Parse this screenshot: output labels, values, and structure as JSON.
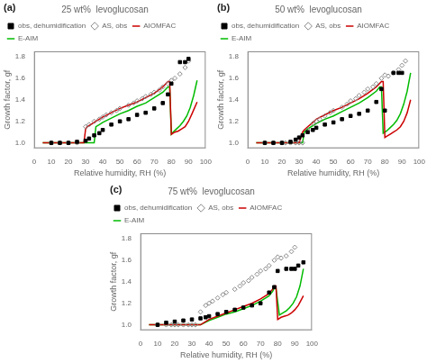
{
  "chart_data": [
    {
      "type": "scatter",
      "title": "25 wt%  levoglucosan",
      "annotations": [
        "(a)"
      ],
      "xlabel": "Relative humidity, RH (%)",
      "ylabel": "Growth factor, gf",
      "xlim": [
        0,
        100
      ],
      "ylim": [
        0.95,
        1.85
      ],
      "xticks": [
        0,
        10,
        20,
        30,
        40,
        50,
        60,
        70,
        80,
        90,
        100
      ],
      "yticks": [
        {
          "value": 1.0,
          "label": "1.0"
        },
        {
          "value": 1.2,
          "label": "1.2"
        },
        {
          "value": 1.4,
          "label": "1.4"
        },
        {
          "value": 1.6,
          "label": "1.6"
        },
        {
          "value": 1.8,
          "label": "1.8"
        }
      ],
      "grid": false,
      "legend": "upper left",
      "series": [
        {
          "name": "obs, dehumidification",
          "type": "scatter",
          "marker": "square",
          "color": "#000000",
          "x": [
            10,
            15,
            20,
            25,
            30,
            32,
            35,
            38,
            40,
            45,
            50,
            55,
            60,
            65,
            70,
            75,
            78,
            80,
            85,
            88,
            90
          ],
          "values": [
            1.0,
            1.0,
            1.0,
            1.01,
            1.02,
            1.04,
            1.07,
            1.09,
            1.12,
            1.17,
            1.2,
            1.22,
            1.26,
            1.28,
            1.32,
            1.37,
            1.45,
            1.55,
            1.75,
            1.75,
            1.78
          ]
        },
        {
          "name": "AS, obs",
          "type": "scatter",
          "marker": "open_diamond",
          "color": "#888888",
          "x": [
            10,
            15,
            20,
            25,
            30,
            32,
            35,
            38,
            40,
            42,
            45,
            48,
            50,
            55,
            58,
            60,
            63,
            65,
            68,
            70,
            73,
            75,
            78,
            80,
            82,
            85,
            88,
            90
          ],
          "values": [
            1.0,
            1.0,
            1.0,
            1.0,
            1.15,
            1.17,
            1.2,
            1.22,
            1.24,
            1.26,
            1.28,
            1.3,
            1.32,
            1.35,
            1.37,
            1.39,
            1.41,
            1.43,
            1.45,
            1.47,
            1.49,
            1.52,
            1.55,
            1.58,
            1.6,
            1.64,
            1.7,
            1.76
          ]
        },
        {
          "name": "AIOMFAC",
          "type": "line",
          "line_style": "solid",
          "color": "#cc0000",
          "x": [
            5,
            10,
            15,
            20,
            25,
            29,
            30,
            31,
            32,
            34,
            36,
            38,
            40,
            45,
            50,
            55,
            60,
            65,
            70,
            75,
            78,
            79,
            80,
            81,
            82,
            84,
            86,
            88,
            90,
            92,
            95
          ],
          "values": [
            1.0,
            1.0,
            1.0,
            1.0,
            1.0,
            1.0,
            1.13,
            1.15,
            1.16,
            1.18,
            1.2,
            1.22,
            1.24,
            1.28,
            1.32,
            1.35,
            1.38,
            1.42,
            1.46,
            1.52,
            1.57,
            1.57,
            1.08,
            1.09,
            1.1,
            1.11,
            1.13,
            1.15,
            1.2,
            1.27,
            1.38
          ]
        },
        {
          "name": "E-AIM",
          "type": "line",
          "line_style": "solid",
          "color": "#00bb00",
          "x": [
            5,
            10,
            15,
            20,
            25,
            30,
            35,
            36,
            38,
            40,
            45,
            50,
            55,
            60,
            65,
            70,
            75,
            78,
            79,
            80,
            81,
            83,
            85,
            87,
            89,
            91,
            93,
            95
          ],
          "values": [
            1.0,
            1.0,
            1.0,
            1.0,
            1.0,
            1.0,
            1.0,
            1.15,
            1.17,
            1.19,
            1.23,
            1.27,
            1.3,
            1.34,
            1.37,
            1.42,
            1.47,
            1.52,
            1.52,
            1.08,
            1.1,
            1.13,
            1.16,
            1.2,
            1.25,
            1.33,
            1.44,
            1.58
          ]
        }
      ]
    },
    {
      "type": "scatter",
      "title": "50 wt%  levoglucosan",
      "annotations": [
        "(b)"
      ],
      "xlabel": "Relative humidity, RH (%)",
      "ylabel": "Growth factor, gf",
      "xlim": [
        0,
        100
      ],
      "ylim": [
        0.95,
        1.85
      ],
      "xticks": [
        0,
        10,
        20,
        30,
        40,
        50,
        60,
        70,
        80,
        90,
        100
      ],
      "yticks": [
        {
          "value": 1.0,
          "label": "1.0"
        },
        {
          "value": 1.2,
          "label": "1.2"
        },
        {
          "value": 1.4,
          "label": "1.4"
        },
        {
          "value": 1.6,
          "label": "1.6"
        },
        {
          "value": 1.8,
          "label": "1.8"
        }
      ],
      "grid": false,
      "legend": "upper left",
      "series": [
        {
          "name": "obs, dehumidification",
          "type": "scatter",
          "marker": "square",
          "color": "#000000",
          "x": [
            10,
            15,
            20,
            25,
            28,
            30,
            32,
            35,
            38,
            40,
            45,
            50,
            55,
            60,
            65,
            70,
            75,
            78,
            80,
            85,
            88,
            90
          ],
          "values": [
            1.0,
            1.0,
            1.0,
            1.01,
            1.03,
            1.05,
            1.07,
            1.1,
            1.12,
            1.14,
            1.17,
            1.19,
            1.22,
            1.25,
            1.27,
            1.3,
            1.38,
            1.5,
            1.3,
            1.65,
            1.65,
            1.65
          ]
        },
        {
          "name": "AS, obs",
          "type": "scatter",
          "marker": "open_diamond",
          "color": "#888888",
          "x": [
            10,
            15,
            20,
            22,
            25,
            28,
            30,
            32,
            35,
            38,
            40,
            42,
            45,
            48,
            50,
            55,
            58,
            60,
            63,
            65,
            68,
            70,
            73,
            75,
            78,
            80,
            82,
            85,
            88,
            90,
            92
          ],
          "values": [
            1.0,
            1.0,
            1.0,
            1.0,
            1.0,
            1.0,
            1.0,
            1.0,
            1.12,
            1.18,
            1.2,
            1.22,
            1.25,
            1.28,
            1.3,
            1.33,
            1.36,
            1.39,
            1.41,
            1.44,
            1.47,
            1.5,
            1.52,
            1.55,
            1.6,
            1.63,
            1.62,
            1.65,
            1.68,
            1.72,
            1.76
          ]
        },
        {
          "name": "AIOMFAC",
          "type": "line",
          "line_style": "solid",
          "color": "#cc0000",
          "x": [
            5,
            10,
            15,
            20,
            25,
            30,
            31,
            32,
            33,
            35,
            38,
            40,
            45,
            50,
            55,
            60,
            65,
            70,
            75,
            78,
            79,
            80,
            81,
            83,
            85,
            87,
            89,
            91,
            93,
            95
          ],
          "values": [
            1.0,
            1.0,
            1.0,
            1.0,
            1.0,
            1.0,
            1.05,
            1.1,
            1.12,
            1.15,
            1.19,
            1.22,
            1.26,
            1.3,
            1.33,
            1.37,
            1.41,
            1.46,
            1.52,
            1.57,
            1.57,
            1.05,
            1.06,
            1.08,
            1.1,
            1.12,
            1.15,
            1.2,
            1.28,
            1.4
          ]
        },
        {
          "name": "E-AIM",
          "type": "line",
          "line_style": "solid",
          "color": "#00bb00",
          "x": [
            5,
            10,
            15,
            20,
            25,
            30,
            32,
            33,
            35,
            38,
            40,
            45,
            50,
            55,
            60,
            65,
            70,
            75,
            77,
            78,
            79,
            81,
            83,
            85,
            87,
            89,
            91,
            93,
            95
          ],
          "values": [
            1.0,
            1.0,
            1.0,
            1.0,
            1.0,
            1.0,
            1.0,
            1.1,
            1.13,
            1.16,
            1.18,
            1.22,
            1.25,
            1.29,
            1.33,
            1.37,
            1.42,
            1.48,
            1.52,
            1.52,
            1.09,
            1.11,
            1.14,
            1.17,
            1.21,
            1.27,
            1.36,
            1.48,
            1.65
          ]
        }
      ]
    },
    {
      "type": "scatter",
      "title": "75 wt%  levoglucosan",
      "annotations": [
        "(c)"
      ],
      "xlabel": "Relative humidity, RH (%)",
      "ylabel": "Growth factor, gf",
      "xlim": [
        0,
        100
      ],
      "ylim": [
        0.95,
        1.85
      ],
      "xticks": [
        0,
        10,
        20,
        30,
        40,
        50,
        60,
        70,
        80,
        90,
        100
      ],
      "yticks": [
        {
          "value": 1.0,
          "label": "1.0"
        },
        {
          "value": 1.2,
          "label": "1.2"
        },
        {
          "value": 1.4,
          "label": "1.4"
        },
        {
          "value": 1.6,
          "label": "1.6"
        },
        {
          "value": 1.8,
          "label": "1.8"
        }
      ],
      "grid": false,
      "legend": "upper left",
      "series": [
        {
          "name": "obs, dehumidification",
          "type": "scatter",
          "marker": "square",
          "color": "#000000",
          "x": [
            10,
            15,
            20,
            25,
            30,
            35,
            38,
            40,
            45,
            50,
            55,
            60,
            65,
            70,
            75,
            78,
            80,
            85,
            88,
            90,
            92,
            95
          ],
          "values": [
            1.0,
            1.02,
            1.03,
            1.04,
            1.05,
            1.06,
            1.07,
            1.08,
            1.1,
            1.12,
            1.14,
            1.16,
            1.18,
            1.2,
            1.3,
            1.35,
            1.5,
            1.52,
            1.52,
            1.52,
            1.55,
            1.58
          ]
        },
        {
          "name": "AS, obs",
          "type": "scatter",
          "marker": "open_diamond",
          "color": "#888888",
          "x": [
            10,
            15,
            18,
            20,
            22,
            25,
            28,
            30,
            32,
            35,
            38,
            40,
            42,
            45,
            48,
            50,
            55,
            58,
            60,
            63,
            65,
            68,
            70,
            73,
            75,
            78,
            80,
            82,
            85,
            88,
            90
          ],
          "values": [
            1.0,
            1.0,
            1.0,
            1.0,
            1.0,
            1.0,
            1.0,
            1.0,
            1.0,
            1.12,
            1.18,
            1.2,
            1.22,
            1.25,
            1.28,
            1.3,
            1.33,
            1.36,
            1.39,
            1.41,
            1.44,
            1.47,
            1.5,
            1.52,
            1.55,
            1.6,
            1.63,
            1.62,
            1.64,
            1.68,
            1.72
          ]
        },
        {
          "name": "AIOMFAC",
          "type": "line",
          "line_style": "solid",
          "color": "#cc0000",
          "x": [
            5,
            10,
            15,
            20,
            25,
            30,
            35,
            40,
            45,
            50,
            55,
            60,
            65,
            70,
            75,
            77,
            78,
            79,
            80,
            82,
            84,
            86,
            88,
            90,
            92,
            95
          ],
          "values": [
            1.0,
            1.0,
            1.0,
            1.0,
            1.0,
            1.0,
            1.0,
            1.05,
            1.08,
            1.11,
            1.14,
            1.17,
            1.2,
            1.24,
            1.29,
            1.33,
            1.36,
            1.36,
            1.05,
            1.07,
            1.08,
            1.09,
            1.11,
            1.14,
            1.18,
            1.27
          ]
        },
        {
          "name": "E-AIM",
          "type": "line",
          "line_style": "solid",
          "color": "#00bb00",
          "x": [
            5,
            10,
            15,
            20,
            25,
            30,
            35,
            40,
            45,
            50,
            55,
            60,
            65,
            70,
            75,
            77,
            78,
            79,
            81,
            83,
            85,
            87,
            89,
            91,
            93,
            95
          ],
          "values": [
            1.0,
            1.0,
            1.0,
            1.0,
            1.0,
            1.0,
            1.0,
            1.04,
            1.07,
            1.1,
            1.12,
            1.15,
            1.18,
            1.22,
            1.27,
            1.31,
            1.34,
            1.34,
            1.09,
            1.11,
            1.13,
            1.16,
            1.2,
            1.26,
            1.36,
            1.52
          ]
        }
      ]
    }
  ]
}
